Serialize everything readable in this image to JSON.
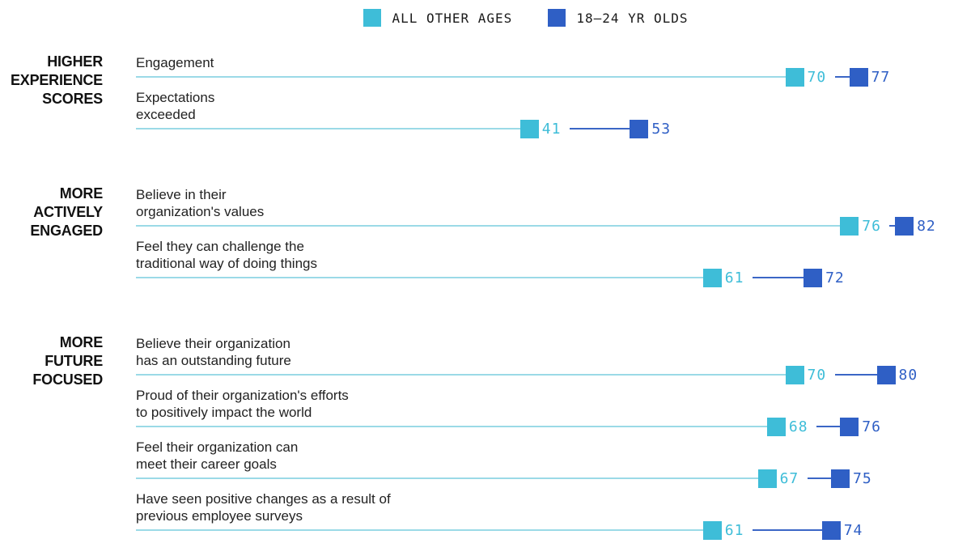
{
  "legend": {
    "items": [
      {
        "label": "ALL OTHER AGES",
        "color": "#3EBDD8"
      },
      {
        "label": "18–24 YR OLDS",
        "color": "#2F5FC5"
      }
    ]
  },
  "chart_data": {
    "type": "dumbbell",
    "orientation": "horizontal",
    "axis": {
      "x_min": 0,
      "x_max": 88,
      "grid": false,
      "axis_labels_visible": false
    },
    "legend_position": "top-center",
    "colors": {
      "track": "#9BDAE7",
      "connector": "#3B66C6",
      "series_light": "#3EBDD8",
      "series_dark": "#2F5FC5"
    },
    "series": [
      {
        "name": "ALL OTHER AGES",
        "color": "#3EBDD8"
      },
      {
        "name": "18–24 YR OLDS",
        "color": "#2F5FC5"
      }
    ],
    "groups": [
      {
        "label": "HIGHER EXPERIENCE SCORES",
        "rows": [
          {
            "label_lines": [
              "Engagement"
            ],
            "values": [
              70,
              77
            ]
          },
          {
            "label_lines": [
              "Expectations",
              "exceeded"
            ],
            "values": [
              41,
              53
            ]
          }
        ]
      },
      {
        "label": "MORE ACTIVELY ENGAGED",
        "rows": [
          {
            "label_lines": [
              "Believe in their",
              "organization's values"
            ],
            "values": [
              76,
              82
            ]
          },
          {
            "label_lines": [
              "Feel they can challenge the",
              "traditional way of doing things"
            ],
            "values": [
              61,
              72
            ]
          }
        ]
      },
      {
        "label": "MORE FUTURE FOCUSED",
        "rows": [
          {
            "label_lines": [
              "Believe their organization",
              "has an outstanding future"
            ],
            "values": [
              70,
              80
            ]
          },
          {
            "label_lines": [
              "Proud of their organization's efforts",
              "to positively impact the world"
            ],
            "values": [
              68,
              76
            ]
          },
          {
            "label_lines": [
              "Feel their organization can",
              "meet their career goals"
            ],
            "values": [
              67,
              75
            ]
          },
          {
            "label_lines": [
              "Have seen positive changes as a result of",
              "previous employee surveys"
            ],
            "values": [
              61,
              74
            ]
          }
        ]
      }
    ]
  }
}
